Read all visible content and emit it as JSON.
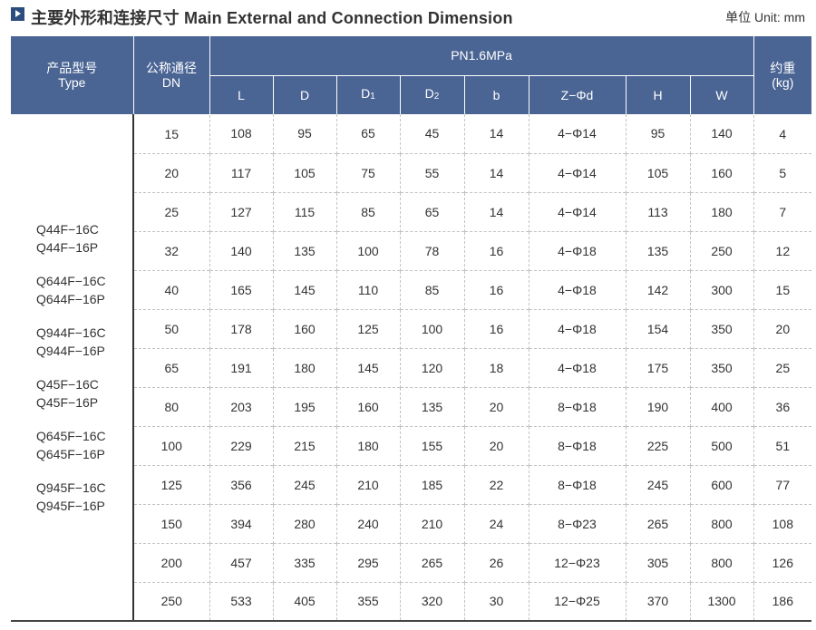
{
  "header": {
    "title": "主要外形和连接尺寸 Main External and Connection Dimension",
    "unit": "单位 Unit: mm"
  },
  "table": {
    "col_type_zh": "产品型号",
    "col_type_en": "Type",
    "col_dn_zh": "公称通径",
    "col_dn_en": "DN",
    "pressure_group": "PN1.6MPa",
    "col_weight_zh": "约重",
    "col_weight_en": "(kg)",
    "sub_columns": [
      {
        "main": "L",
        "sub": ""
      },
      {
        "main": "D",
        "sub": ""
      },
      {
        "main": "D",
        "sub": "1"
      },
      {
        "main": "D",
        "sub": "2"
      },
      {
        "main": "b",
        "sub": ""
      },
      {
        "main": "Z−Φd",
        "sub": ""
      },
      {
        "main": "H",
        "sub": ""
      },
      {
        "main": "W",
        "sub": ""
      }
    ],
    "types": [
      [
        "Q44F−16C",
        "Q44F−16P"
      ],
      [
        "Q644F−16C",
        "Q644F−16P"
      ],
      [
        "Q944F−16C",
        "Q944F−16P"
      ],
      [
        "Q45F−16C",
        "Q45F−16P"
      ],
      [
        "Q645F−16C",
        "Q645F−16P"
      ],
      [
        "Q945F−16C",
        "Q945F−16P"
      ]
    ],
    "rows": [
      [
        "15",
        "108",
        "95",
        "65",
        "45",
        "14",
        "4−Φ14",
        "95",
        "140",
        "4"
      ],
      [
        "20",
        "117",
        "105",
        "75",
        "55",
        "14",
        "4−Φ14",
        "105",
        "160",
        "5"
      ],
      [
        "25",
        "127",
        "115",
        "85",
        "65",
        "14",
        "4−Φ14",
        "113",
        "180",
        "7"
      ],
      [
        "32",
        "140",
        "135",
        "100",
        "78",
        "16",
        "4−Φ18",
        "135",
        "250",
        "12"
      ],
      [
        "40",
        "165",
        "145",
        "110",
        "85",
        "16",
        "4−Φ18",
        "142",
        "300",
        "15"
      ],
      [
        "50",
        "178",
        "160",
        "125",
        "100",
        "16",
        "4−Φ18",
        "154",
        "350",
        "20"
      ],
      [
        "65",
        "191",
        "180",
        "145",
        "120",
        "18",
        "4−Φ18",
        "175",
        "350",
        "25"
      ],
      [
        "80",
        "203",
        "195",
        "160",
        "135",
        "20",
        "8−Φ18",
        "190",
        "400",
        "36"
      ],
      [
        "100",
        "229",
        "215",
        "180",
        "155",
        "20",
        "8−Φ18",
        "225",
        "500",
        "51"
      ],
      [
        "125",
        "356",
        "245",
        "210",
        "185",
        "22",
        "8−Φ18",
        "245",
        "600",
        "77"
      ],
      [
        "150",
        "394",
        "280",
        "240",
        "210",
        "24",
        "8−Φ23",
        "265",
        "800",
        "108"
      ],
      [
        "200",
        "457",
        "335",
        "295",
        "265",
        "26",
        "12−Φ23",
        "305",
        "800",
        "126"
      ],
      [
        "250",
        "533",
        "405",
        "355",
        "320",
        "30",
        "12−Φ25",
        "370",
        "1300",
        "186"
      ]
    ]
  }
}
